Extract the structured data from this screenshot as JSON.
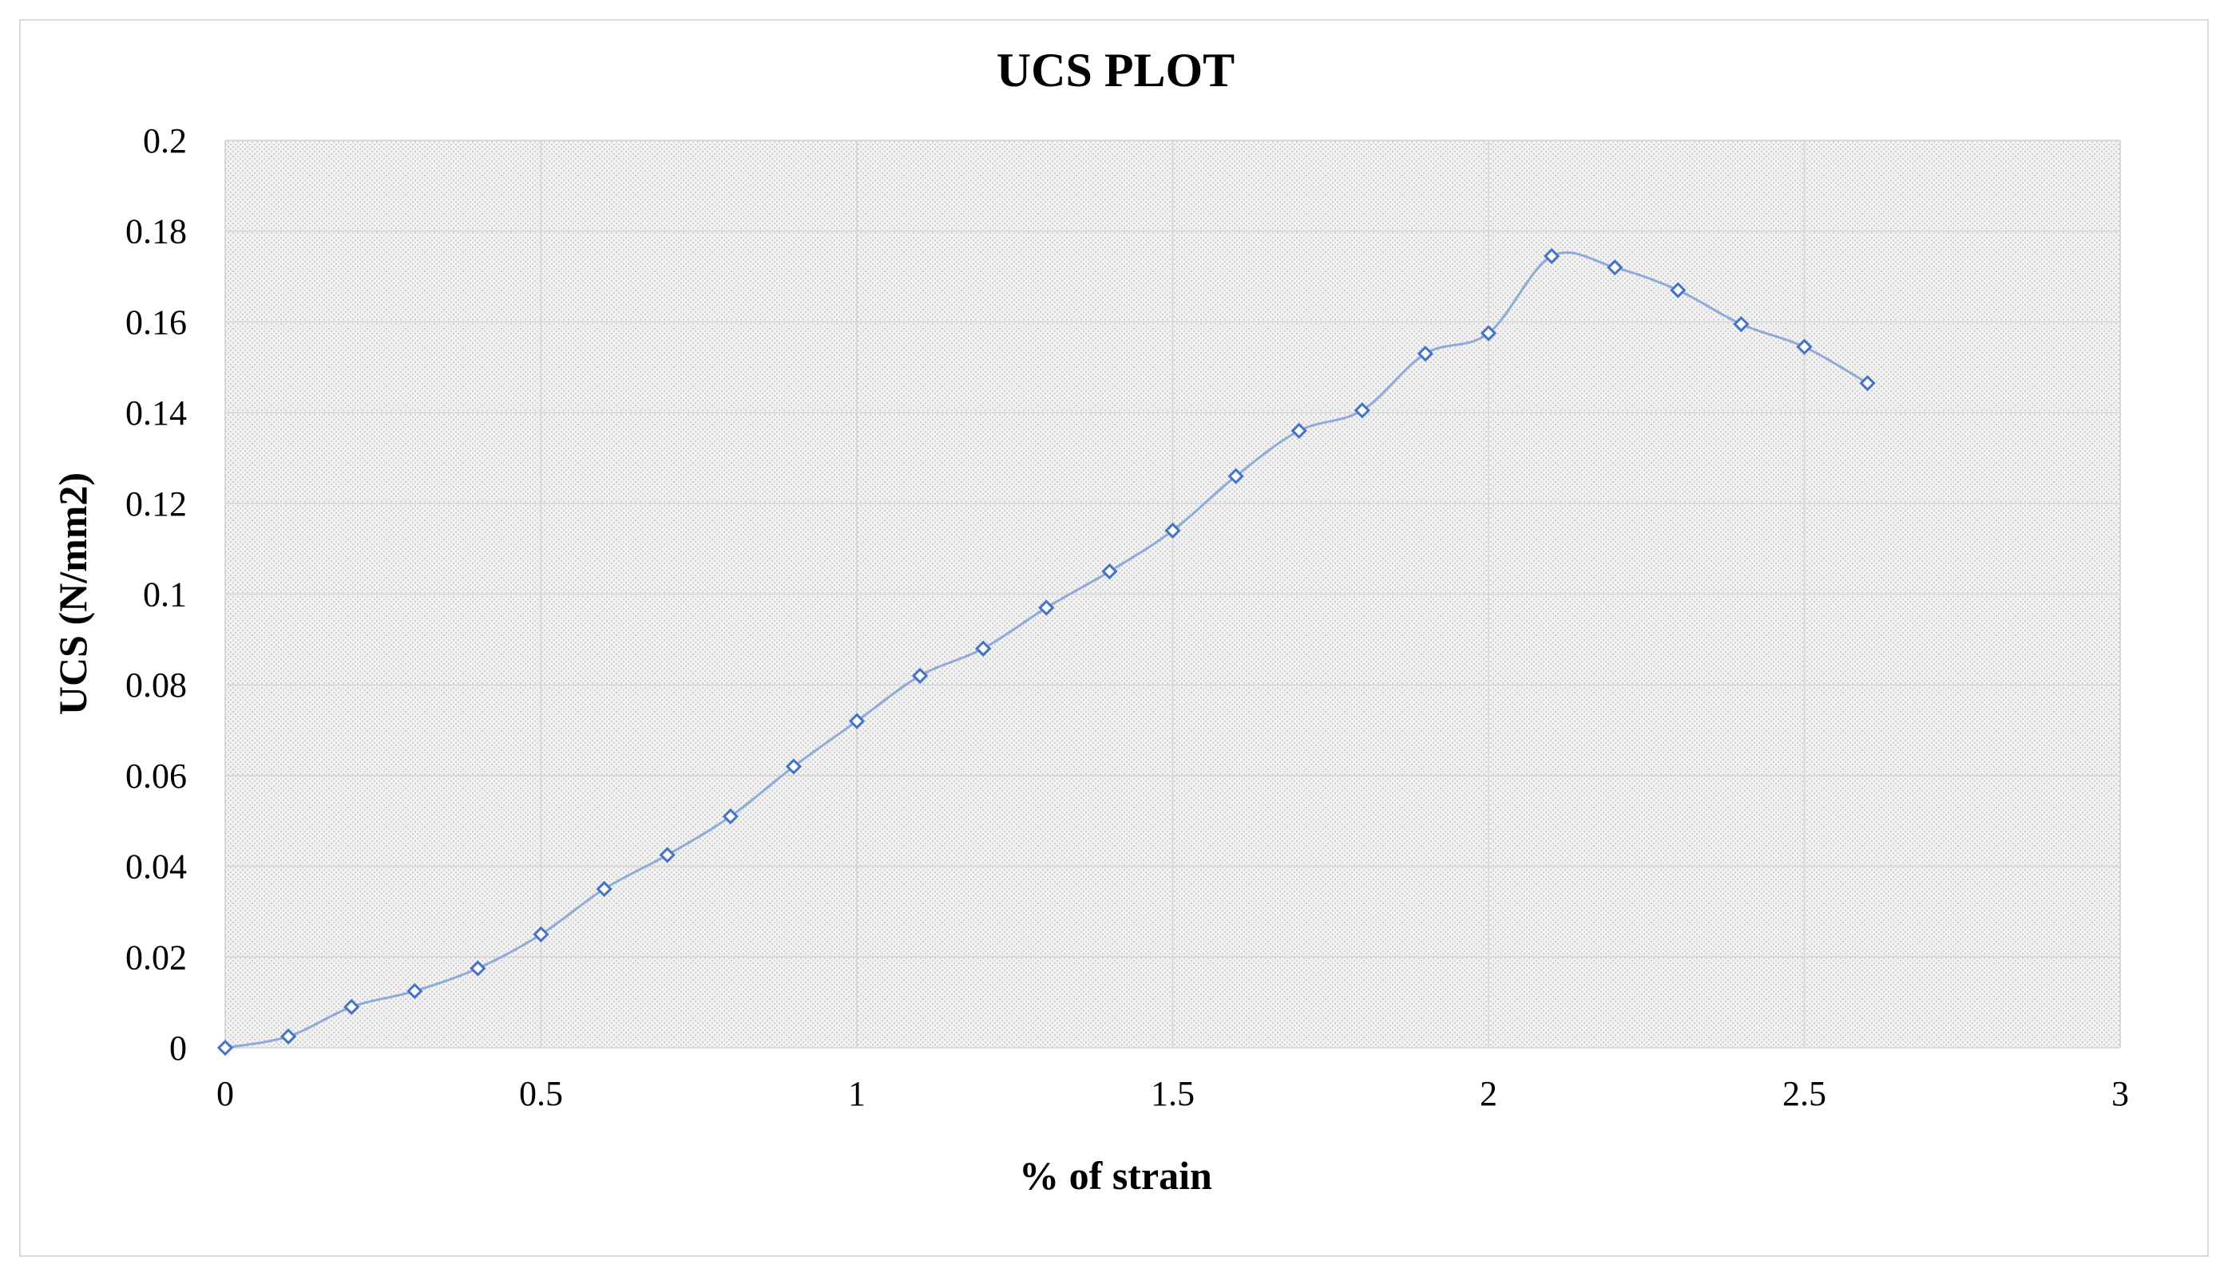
{
  "chart_data": {
    "type": "scatter",
    "title": "UCS PLOT",
    "xlabel": "% of strain",
    "ylabel": "UCS (N/mm2)",
    "xlim": [
      0,
      3
    ],
    "ylim": [
      0,
      0.2
    ],
    "x_ticks": [
      0,
      0.5,
      1,
      1.5,
      2,
      2.5,
      3
    ],
    "x_tick_labels": [
      "0",
      "0.5",
      "1",
      "1.5",
      "2",
      "2.5",
      "3"
    ],
    "y_ticks": [
      0,
      0.02,
      0.04,
      0.06,
      0.08,
      0.1,
      0.12,
      0.14,
      0.16,
      0.18,
      0.2
    ],
    "y_tick_labels": [
      "0",
      "0.02",
      "0.04",
      "0.06",
      "0.08",
      "0.1",
      "0.12",
      "0.14",
      "0.16",
      "0.18",
      "0.2"
    ],
    "grid": true,
    "marker": "diamond-open",
    "line": "smooth",
    "colors": {
      "series": "#4472c4",
      "line": "#8eaadb",
      "grid": "#d9d9d9",
      "plot_background": "#efefef"
    },
    "series": [
      {
        "x": [
          0,
          0.1,
          0.2,
          0.3,
          0.4,
          0.5,
          0.6,
          0.7,
          0.8,
          0.9,
          1.0,
          1.1,
          1.2,
          1.3,
          1.4,
          1.5,
          1.6,
          1.7,
          1.8,
          1.9,
          2.0,
          2.1,
          2.2,
          2.3,
          2.4,
          2.5,
          2.6
        ],
        "y": [
          0,
          0.0025,
          0.009,
          0.0125,
          0.0175,
          0.025,
          0.035,
          0.0425,
          0.051,
          0.062,
          0.072,
          0.082,
          0.088,
          0.097,
          0.105,
          0.114,
          0.126,
          0.136,
          0.1405,
          0.153,
          0.1575,
          0.1745,
          0.172,
          0.167,
          0.1595,
          0.1545,
          0.1465
        ]
      }
    ]
  }
}
